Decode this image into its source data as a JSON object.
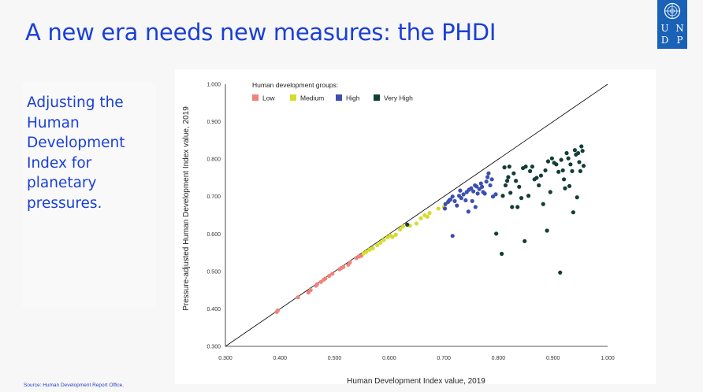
{
  "slide": {
    "title": "A new era needs new measures: the PHDI",
    "side_text": "Adjusting the Human Development Index for planetary pressures.",
    "source": "Source: Human Development Report Office.",
    "logo_letters": [
      "U",
      "N",
      "D",
      "P"
    ]
  },
  "colors": {
    "title": "#1a3fd6",
    "logo_bg": "#1a62b8",
    "Low": "#f0827c",
    "Medium": "#d6dc2a",
    "High": "#3d4fb0",
    "Very High": "#133e36"
  },
  "chart_data": {
    "type": "scatter",
    "xlabel": "Human Development Index value, 2019",
    "ylabel": "Pressure-adjusted Human Development Index value, 2019",
    "xlim": [
      0.3,
      1.0
    ],
    "ylim": [
      0.3,
      1.0
    ],
    "xticks": [
      "0.300",
      "0.400",
      "0.500",
      "0.600",
      "0.700",
      "0.800",
      "0.900",
      "1.000"
    ],
    "yticks": [
      "0.300",
      "0.400",
      "0.500",
      "0.600",
      "0.700",
      "0.800",
      "0.900",
      "1.000"
    ],
    "reference_line": "y = x",
    "legend_title": "Human development groups:",
    "legend_position": "top-left",
    "series": [
      {
        "name": "Low",
        "points": [
          [
            0.394,
            0.392
          ],
          [
            0.396,
            0.396
          ],
          [
            0.433,
            0.431
          ],
          [
            0.452,
            0.444
          ],
          [
            0.456,
            0.45
          ],
          [
            0.468,
            0.466
          ],
          [
            0.475,
            0.472
          ],
          [
            0.48,
            0.478
          ],
          [
            0.483,
            0.481
          ],
          [
            0.49,
            0.488
          ],
          [
            0.496,
            0.494
          ],
          [
            0.509,
            0.506
          ],
          [
            0.512,
            0.509
          ],
          [
            0.516,
            0.512
          ],
          [
            0.528,
            0.524
          ],
          [
            0.54,
            0.536
          ],
          [
            0.545,
            0.54
          ],
          [
            0.549,
            0.542
          ],
          [
            0.525,
            0.518
          ],
          [
            0.466,
            0.462
          ]
        ]
      },
      {
        "name": "Medium",
        "points": [
          [
            0.553,
            0.548
          ],
          [
            0.558,
            0.552
          ],
          [
            0.564,
            0.558
          ],
          [
            0.57,
            0.562
          ],
          [
            0.578,
            0.57
          ],
          [
            0.584,
            0.577
          ],
          [
            0.59,
            0.584
          ],
          [
            0.597,
            0.591
          ],
          [
            0.602,
            0.596
          ],
          [
            0.606,
            0.592
          ],
          [
            0.612,
            0.598
          ],
          [
            0.62,
            0.612
          ],
          [
            0.625,
            0.62
          ],
          [
            0.638,
            0.622
          ],
          [
            0.65,
            0.628
          ],
          [
            0.658,
            0.642
          ],
          [
            0.665,
            0.65
          ],
          [
            0.67,
            0.646
          ],
          [
            0.674,
            0.656
          ],
          [
            0.69,
            0.668
          ],
          [
            0.7,
            0.672
          ]
        ]
      },
      {
        "name": "High",
        "points": [
          [
            0.703,
            0.68
          ],
          [
            0.708,
            0.686
          ],
          [
            0.712,
            0.692
          ],
          [
            0.716,
            0.7
          ],
          [
            0.72,
            0.688
          ],
          [
            0.724,
            0.676
          ],
          [
            0.728,
            0.702
          ],
          [
            0.732,
            0.696
          ],
          [
            0.736,
            0.706
          ],
          [
            0.74,
            0.69
          ],
          [
            0.742,
            0.712
          ],
          [
            0.746,
            0.718
          ],
          [
            0.75,
            0.722
          ],
          [
            0.754,
            0.714
          ],
          [
            0.757,
            0.73
          ],
          [
            0.76,
            0.727
          ],
          [
            0.762,
            0.708
          ],
          [
            0.765,
            0.72
          ],
          [
            0.768,
            0.735
          ],
          [
            0.77,
            0.726
          ],
          [
            0.772,
            0.712
          ],
          [
            0.775,
            0.708
          ],
          [
            0.778,
            0.74
          ],
          [
            0.78,
            0.752
          ],
          [
            0.782,
            0.762
          ],
          [
            0.785,
            0.73
          ],
          [
            0.788,
            0.746
          ],
          [
            0.79,
            0.7
          ],
          [
            0.795,
            0.706
          ],
          [
            0.716,
            0.595
          ],
          [
            0.745,
            0.66
          ],
          [
            0.758,
            0.672
          ],
          [
            0.752,
            0.688
          ],
          [
            0.73,
            0.716
          ],
          [
            0.71,
            0.69
          ],
          [
            0.702,
            0.668
          ]
        ]
      },
      {
        "name": "Very High",
        "points": [
          [
            0.633,
            0.625
          ],
          [
            0.796,
            0.601
          ],
          [
            0.806,
            0.547
          ],
          [
            0.808,
            0.702
          ],
          [
            0.811,
            0.778
          ],
          [
            0.813,
            0.73
          ],
          [
            0.816,
            0.742
          ],
          [
            0.818,
            0.752
          ],
          [
            0.82,
            0.78
          ],
          [
            0.822,
            0.71
          ],
          [
            0.825,
            0.672
          ],
          [
            0.828,
            0.762
          ],
          [
            0.832,
            0.742
          ],
          [
            0.835,
            0.672
          ],
          [
            0.838,
            0.726
          ],
          [
            0.842,
            0.696
          ],
          [
            0.845,
            0.776
          ],
          [
            0.848,
            0.581
          ],
          [
            0.85,
            0.78
          ],
          [
            0.855,
            0.702
          ],
          [
            0.858,
            0.768
          ],
          [
            0.862,
            0.78
          ],
          [
            0.866,
            0.746
          ],
          [
            0.87,
            0.75
          ],
          [
            0.874,
            0.73
          ],
          [
            0.878,
            0.756
          ],
          [
            0.882,
            0.68
          ],
          [
            0.886,
            0.77
          ],
          [
            0.889,
            0.609
          ],
          [
            0.891,
            0.794
          ],
          [
            0.895,
            0.712
          ],
          [
            0.898,
            0.802
          ],
          [
            0.902,
            0.79
          ],
          [
            0.906,
            0.786
          ],
          [
            0.91,
            0.766
          ],
          [
            0.913,
            0.497
          ],
          [
            0.915,
            0.798
          ],
          [
            0.918,
            0.77
          ],
          [
            0.92,
            0.746
          ],
          [
            0.922,
            0.722
          ],
          [
            0.925,
            0.816
          ],
          [
            0.928,
            0.802
          ],
          [
            0.93,
            0.728
          ],
          [
            0.932,
            0.786
          ],
          [
            0.935,
            0.768
          ],
          [
            0.937,
            0.658
          ],
          [
            0.94,
            0.824
          ],
          [
            0.942,
            0.812
          ],
          [
            0.944,
            0.698
          ],
          [
            0.946,
            0.816
          ],
          [
            0.948,
            0.792
          ],
          [
            0.95,
            0.768
          ],
          [
            0.952,
            0.834
          ],
          [
            0.954,
            0.822
          ],
          [
            0.956,
            0.782
          ]
        ]
      }
    ]
  }
}
